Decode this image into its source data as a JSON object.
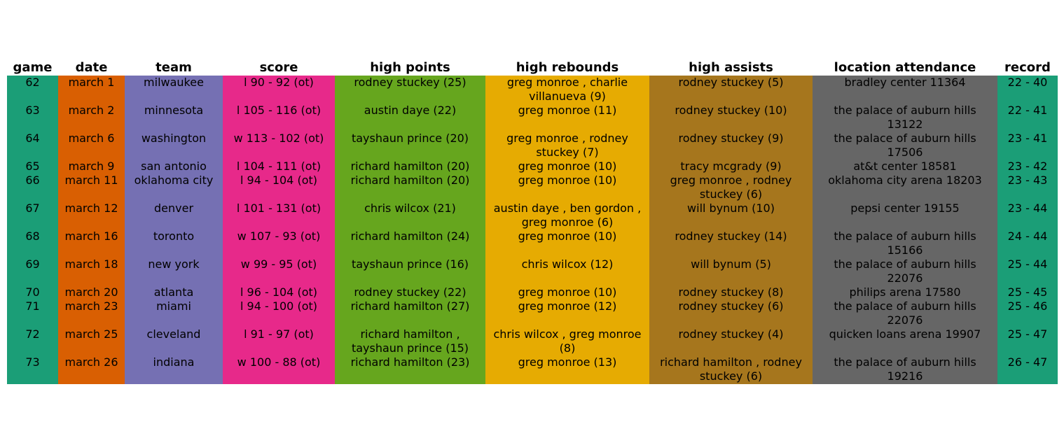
{
  "chart_data": {
    "type": "table",
    "columns": [
      {
        "key": "game",
        "label": "game",
        "color": "#1b9e77"
      },
      {
        "key": "date",
        "label": "date",
        "color": "#d95f02"
      },
      {
        "key": "team",
        "label": "team",
        "color": "#7570b3"
      },
      {
        "key": "score",
        "label": "score",
        "color": "#e7298a"
      },
      {
        "key": "high_points",
        "label": "high points",
        "color": "#66a61e"
      },
      {
        "key": "high_rebounds",
        "label": "high rebounds",
        "color": "#e6ab02"
      },
      {
        "key": "high_assists",
        "label": "high assists",
        "color": "#a6761d"
      },
      {
        "key": "location_attendance",
        "label": "location attendance",
        "color": "#666666"
      },
      {
        "key": "record",
        "label": "record",
        "color": "#1b9e77"
      }
    ],
    "rows": [
      [
        "62",
        "march 1",
        "milwaukee",
        "l 90 - 92 (ot)",
        "rodney stuckey (25)",
        "greg monroe , charlie villanueva (9)",
        "rodney stuckey (5)",
        "bradley center 11364",
        "22 - 40"
      ],
      [
        "63",
        "march 2",
        "minnesota",
        "l 105 - 116 (ot)",
        "austin daye (22)",
        "greg monroe (11)",
        "rodney stuckey (10)",
        "the palace of auburn hills 13122",
        "22 - 41"
      ],
      [
        "64",
        "march 6",
        "washington",
        "w 113 - 102 (ot)",
        "tayshaun prince (20)",
        "greg monroe , rodney stuckey (7)",
        "rodney stuckey (9)",
        "the palace of auburn hills 17506",
        "23 - 41"
      ],
      [
        "65",
        "march 9",
        "san antonio",
        "l 104 - 111 (ot)",
        "richard hamilton (20)",
        "greg monroe (10)",
        "tracy mcgrady (9)",
        "at&t center 18581",
        "23 - 42"
      ],
      [
        "66",
        "march 11",
        "oklahoma city",
        "l 94 - 104 (ot)",
        "richard hamilton (20)",
        "greg monroe (10)",
        "greg monroe , rodney stuckey (6)",
        "oklahoma city arena 18203",
        "23 - 43"
      ],
      [
        "67",
        "march 12",
        "denver",
        "l 101 - 131 (ot)",
        "chris wilcox (21)",
        "austin daye , ben gordon , greg monroe (6)",
        "will bynum (10)",
        "pepsi center 19155",
        "23 - 44"
      ],
      [
        "68",
        "march 16",
        "toronto",
        "w 107 - 93 (ot)",
        "richard hamilton (24)",
        "greg monroe (10)",
        "rodney stuckey (14)",
        "the palace of auburn hills 15166",
        "24 - 44"
      ],
      [
        "69",
        "march 18",
        "new york",
        "w 99 - 95 (ot)",
        "tayshaun prince (16)",
        "chris wilcox (12)",
        "will bynum (5)",
        "the palace of auburn hills 22076",
        "25 - 44"
      ],
      [
        "70",
        "march 20",
        "atlanta",
        "l 96 - 104 (ot)",
        "rodney stuckey (22)",
        "greg monroe (10)",
        "rodney stuckey (8)",
        "philips arena 17580",
        "25 - 45"
      ],
      [
        "71",
        "march 23",
        "miami",
        "l 94 - 100 (ot)",
        "richard hamilton (27)",
        "greg monroe (12)",
        "rodney stuckey (6)",
        "the palace of auburn hills 22076",
        "25 - 46"
      ],
      [
        "72",
        "march 25",
        "cleveland",
        "l 91 - 97 (ot)",
        "richard hamilton , tayshaun prince (15)",
        "chris wilcox , greg monroe (8)",
        "rodney stuckey (4)",
        "quicken loans arena 19907",
        "25 - 47"
      ],
      [
        "73",
        "march 26",
        "indiana",
        "w 100 - 88 (ot)",
        "richard hamilton (23)",
        "greg monroe (13)",
        "richard hamilton , rodney stuckey (6)",
        "the palace of auburn hills 19216",
        "26 - 47"
      ]
    ]
  }
}
